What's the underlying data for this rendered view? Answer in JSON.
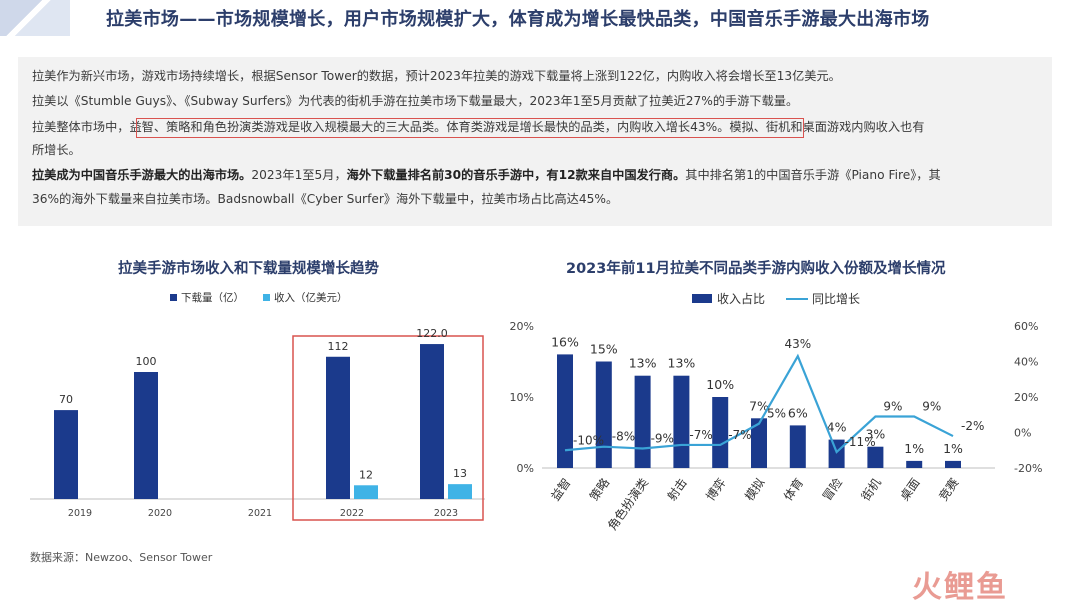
{
  "header": {
    "title": "拉美市场——市场规模增长，用户市场规模扩大，体育成为增长最快品类，中国音乐手游最大出海市场"
  },
  "summary": {
    "p1": "拉美作为新兴市场，游戏市场持续增长，根据Sensor Tower的数据，预计2023年拉美的游戏下载量将上涨到122亿，内购收入将会增长至13亿美元。",
    "p2": "拉美以《Stumble Guys》、《Subway Surfers》为代表的街机手游在拉美市场下载量最大，2023年1至5月贡献了拉美近27%的手游下载量。",
    "p3_a": "拉美整体市场中，",
    "p3_b": "益智、策略和角色扮演类游戏是收入规模最大的三大品类。体育类游戏是增长最快的品类，内购收入增长43%。",
    "p3_c": "模拟、街机和桌面游戏内购收入也有",
    "p3_d": "所增长。",
    "p4_a": "拉美成为中国音乐手游最大的出海市场。",
    "p4_b": "2023年1至5月，",
    "p4_c": "海外下载量排名前30的音乐手游中，有12款来自中国发行商。",
    "p4_d": "其中排名第1的中国音乐手游《Piano Fire》，其",
    "p5": "36%的海外下载量来自拉美市场。Badsnowball《Cyber Surfer》海外下载量中，拉美市场占比高达45%。"
  },
  "source": "数据来源：Newzoo、Sensor Tower",
  "logo_text": "火鲤鱼",
  "colors": {
    "navy": "#1b3a8c",
    "light_blue": "#3fb3e6",
    "line": "#3aa3d6",
    "highlight_red": "#d9534f",
    "title": "#2c3e6b"
  },
  "chart_data": [
    {
      "type": "bar",
      "title": "拉美手游市场收入和下载量规模增长趋势",
      "categories": [
        "2019",
        "2020",
        "2021",
        "2022",
        "2023"
      ],
      "series": [
        {
          "name": "下载量（亿）",
          "values": [
            70,
            100,
            null,
            112,
            122
          ],
          "labels": [
            "70",
            "100",
            "",
            "112",
            "122.0"
          ]
        },
        {
          "name": "收入（亿美元）",
          "values": [
            null,
            null,
            null,
            12,
            13
          ],
          "labels": [
            "",
            "",
            "",
            "12",
            "13"
          ]
        }
      ],
      "legend_position": "top-left",
      "highlight_categories": [
        "2022",
        "2023"
      ]
    },
    {
      "type": "bar",
      "title": "2023年前11月拉美不同品类手游内购收入份额及增长情况",
      "categories": [
        "益智",
        "策略",
        "角色扮演类",
        "射击",
        "博弈",
        "模拟",
        "体育",
        "冒险",
        "街机",
        "桌面",
        "竞赛"
      ],
      "series": [
        {
          "name": "收入占比",
          "values": [
            16,
            15,
            13,
            13,
            10,
            7,
            6,
            4,
            3,
            1,
            1
          ],
          "labels": [
            "16%",
            "15%",
            "13%",
            "13%",
            "10%",
            "7%",
            "6%",
            "4%",
            "3%",
            "1%",
            "1%"
          ]
        },
        {
          "name": "同比增长",
          "type": "line",
          "values": [
            -10,
            -8,
            -9,
            -7,
            -7,
            5,
            43,
            -11,
            9,
            9,
            -2
          ],
          "labels": [
            "-10%",
            "-8%",
            "-9%",
            "-7%",
            "-7%",
            "5%",
            "43%",
            "-11%",
            "9%",
            "9%",
            "-2%"
          ]
        }
      ],
      "y_left": {
        "min": 0,
        "max": 20,
        "ticks": [
          "0%",
          "10%",
          "20%"
        ]
      },
      "y_right": {
        "min": -20,
        "max": 60,
        "ticks": [
          "-20%",
          "0%",
          "20%",
          "40%",
          "60%"
        ]
      },
      "legend_position": "top-center"
    }
  ]
}
